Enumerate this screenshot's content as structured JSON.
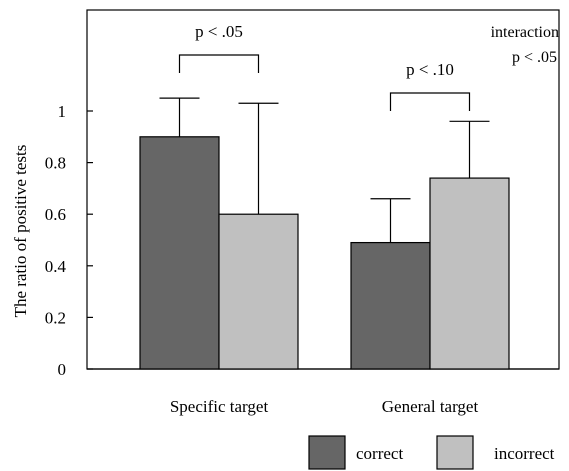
{
  "chart_data": {
    "type": "bar",
    "ylabel": "The ratio of positive tests",
    "ylim": [
      0,
      1.2
    ],
    "yticks": [
      0,
      0.2,
      0.4,
      0.6,
      0.8,
      1
    ],
    "ytick_labels": [
      "0",
      "0.2",
      "0.4",
      "0.6",
      "0.8",
      "1"
    ],
    "categories": [
      "Specific target",
      "General target"
    ],
    "series": [
      {
        "name": "correct",
        "values": [
          0.9,
          0.49
        ],
        "error_upper": [
          1.05,
          0.66
        ],
        "color": "#666666"
      },
      {
        "name": "incorrect",
        "values": [
          0.6,
          0.74
        ],
        "error_upper": [
          1.03,
          0.96
        ],
        "color": "#c0c0c0"
      }
    ],
    "annotations": [
      {
        "text": "p < .05",
        "category": "Specific target"
      },
      {
        "text": "p < .10",
        "category": "General target"
      }
    ],
    "interaction_note": [
      "interaction",
      "p < .05"
    ],
    "legend_position": "bottom-right",
    "grid": false
  }
}
